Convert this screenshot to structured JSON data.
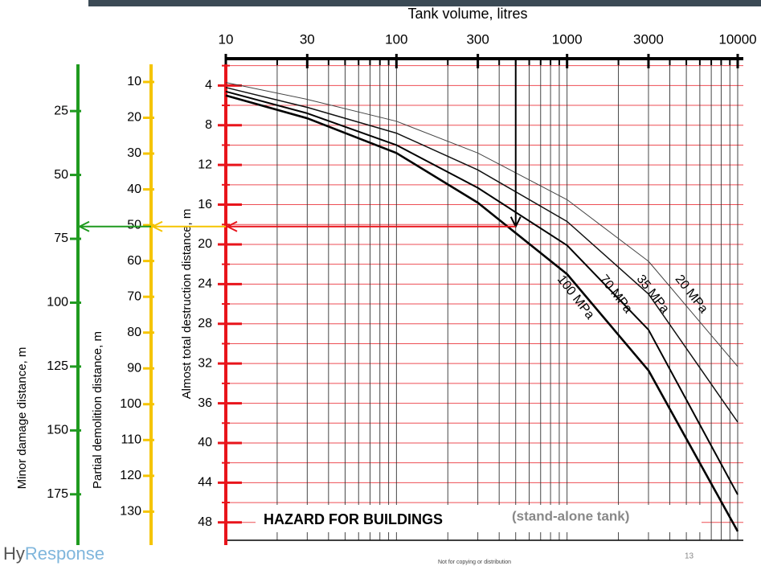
{
  "chart_data": {
    "type": "line",
    "xlabel": "Tank volume, litres",
    "ylabel": "Almost total destruction distance, m",
    "xscale": "log",
    "xlim": [
      10,
      10000
    ],
    "xticks": [
      10,
      30,
      100,
      300,
      1000,
      3000,
      10000
    ],
    "xgrid": [
      10,
      20,
      30,
      40,
      50,
      60,
      70,
      80,
      90,
      100,
      200,
      300,
      400,
      500,
      600,
      700,
      800,
      900,
      1000,
      2000,
      3000,
      4000,
      5000,
      6000,
      7000,
      8000,
      9000,
      10000
    ],
    "ylim": [
      1.3,
      49.8
    ],
    "y_inverted": true,
    "yticks": [
      4,
      8,
      12,
      16,
      20,
      24,
      28,
      32,
      36,
      40,
      44,
      48
    ],
    "ygrid": [
      2,
      4,
      6,
      8,
      10,
      12,
      14,
      16,
      18,
      20,
      22,
      24,
      26,
      28,
      30,
      32,
      34,
      36,
      38,
      40,
      42,
      44,
      46,
      48
    ],
    "y_color": "#e8141b",
    "grid": true,
    "x": [
      10,
      30,
      100,
      300,
      1000,
      3000,
      10000
    ],
    "series": [
      {
        "name": "100 MPa",
        "color": "#000000",
        "values": [
          5.0,
          7.3,
          10.8,
          15.8,
          23.0,
          32.7,
          48.9
        ]
      },
      {
        "name": "70 MPa",
        "color": "#000000",
        "values": [
          4.6,
          6.8,
          10.0,
          14.3,
          20.1,
          28.6,
          45.2
        ]
      },
      {
        "name": "35 MPa",
        "color": "#111111",
        "values": [
          4.2,
          6.2,
          8.8,
          12.5,
          17.7,
          25.0,
          37.9
        ]
      },
      {
        "name": "20 MPa",
        "color": "#444444",
        "values": [
          3.7,
          5.4,
          7.6,
          10.8,
          15.5,
          21.7,
          32.3
        ]
      }
    ],
    "extra_axes": [
      {
        "label": "Partial demolition distance, m",
        "color": "#f5c400",
        "lim": [
          3.5,
          138
        ],
        "ticks": [
          10,
          20,
          30,
          40,
          50,
          60,
          70,
          80,
          90,
          100,
          110,
          120,
          130
        ]
      },
      {
        "label": "Minor damage distance, m",
        "color": "#1f9a1f",
        "lim": [
          4.5,
          193
        ],
        "ticks": [
          25,
          50,
          75,
          100,
          125,
          150,
          175
        ]
      }
    ],
    "reading": {
      "x": 500,
      "y": 18.2
    },
    "annotations": [
      "HAZARD FOR BUILDINGS",
      "(stand-alone tank)"
    ]
  },
  "logo": [
    "Hy",
    "Response"
  ],
  "footer": {
    "notice": "Not for copying or distribution",
    "page": "13"
  }
}
